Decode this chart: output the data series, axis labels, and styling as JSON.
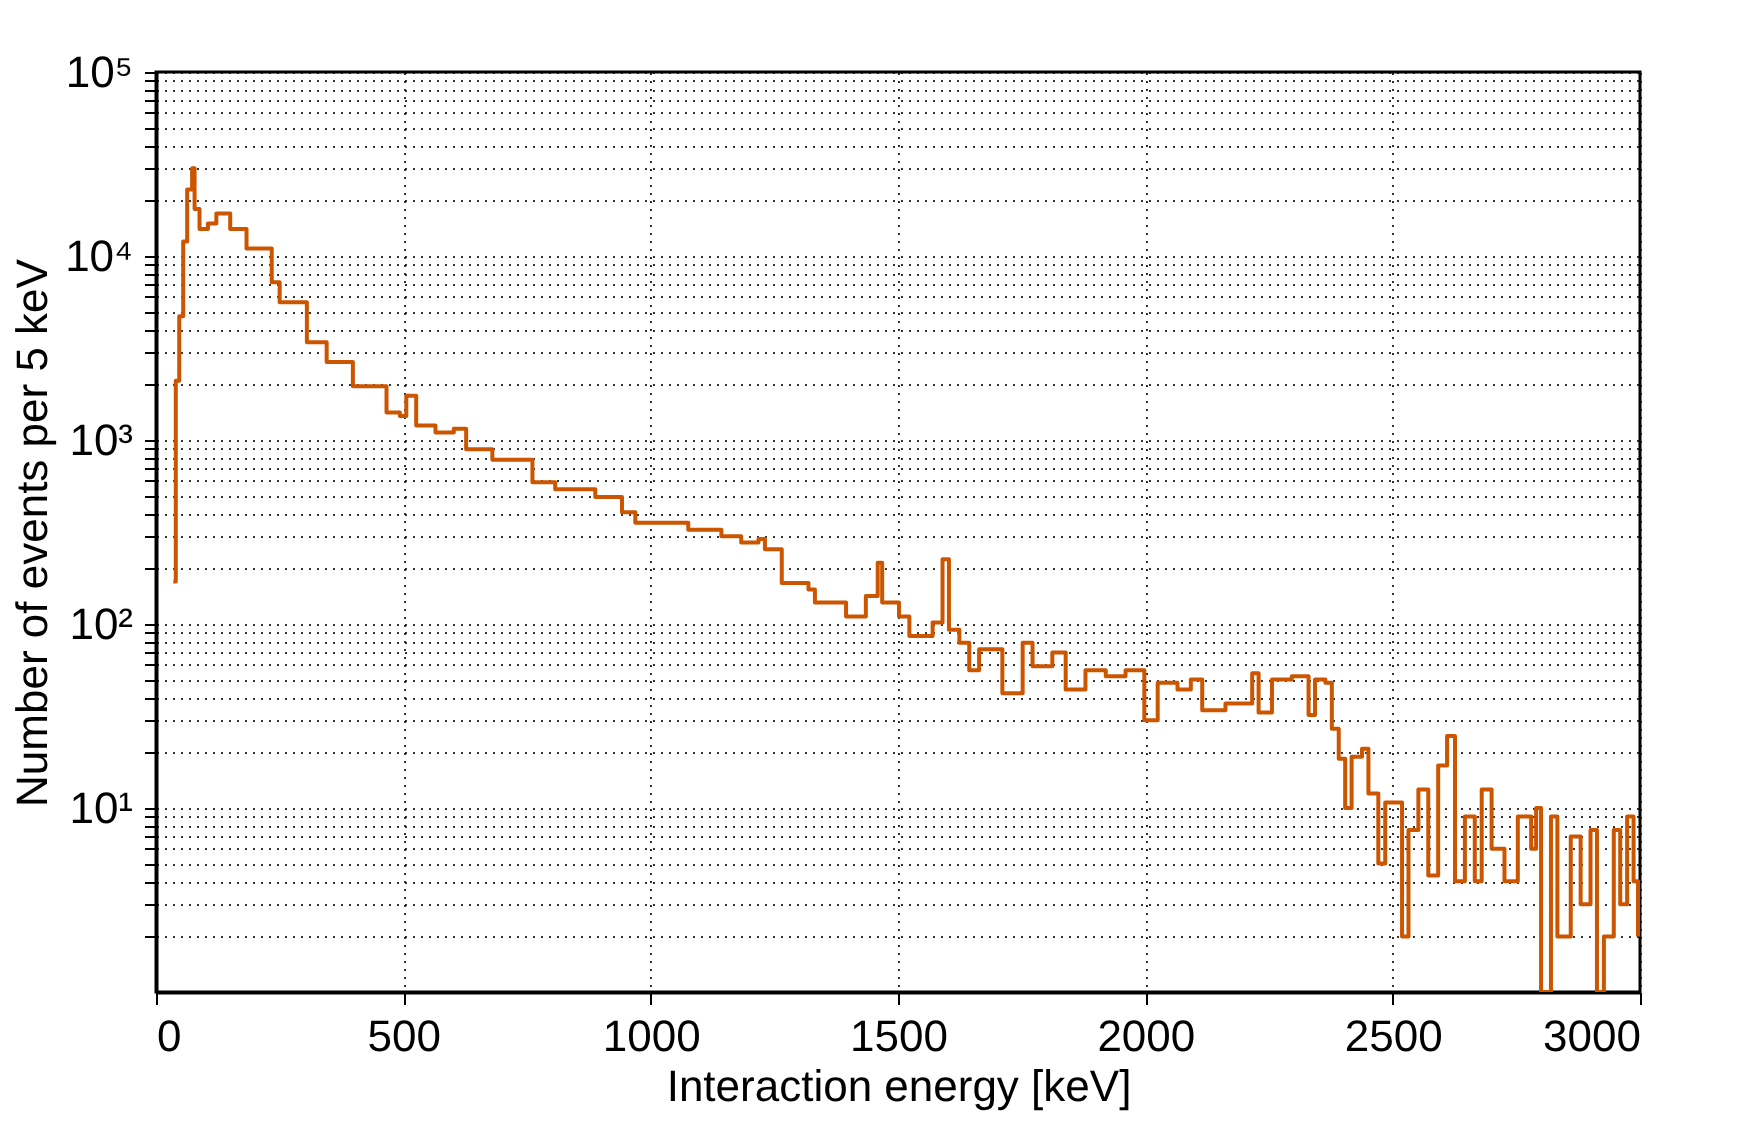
{
  "chart_data": {
    "type": "step",
    "xlabel": "Interaction energy [keV]",
    "ylabel": "Number of events per 5 keV",
    "log": "y",
    "grid": true,
    "line_style": "solid",
    "marker": "none",
    "xlim": [
      0,
      3000
    ],
    "xticks": [
      0,
      500,
      1000,
      1500,
      2000,
      2500,
      3000
    ],
    "ylim": [
      1,
      100000
    ],
    "yticks": [
      {
        "value": 2,
        "label": null
      },
      {
        "value": 3,
        "label": null
      },
      {
        "value": 4,
        "label": null
      },
      {
        "value": 5,
        "label": null
      },
      {
        "value": 6,
        "label": null
      },
      {
        "value": 7,
        "label": null
      },
      {
        "value": 8,
        "label": null
      },
      {
        "value": 9,
        "label": null
      },
      {
        "value": 10,
        "label": "10¹"
      },
      {
        "value": 20,
        "label": null
      },
      {
        "value": 30,
        "label": null
      },
      {
        "value": 40,
        "label": null
      },
      {
        "value": 50,
        "label": null
      },
      {
        "value": 60,
        "label": null
      },
      {
        "value": 70,
        "label": null
      },
      {
        "value": 80,
        "label": null
      },
      {
        "value": 90,
        "label": null
      },
      {
        "value": 100,
        "label": "10²"
      },
      {
        "value": 200,
        "label": null
      },
      {
        "value": 300,
        "label": null
      },
      {
        "value": 400,
        "label": null
      },
      {
        "value": 500,
        "label": null
      },
      {
        "value": 600,
        "label": null
      },
      {
        "value": 700,
        "label": null
      },
      {
        "value": 800,
        "label": null
      },
      {
        "value": 900,
        "label": null
      },
      {
        "value": 1000,
        "label": "10³"
      },
      {
        "value": 2000,
        "label": null
      },
      {
        "value": 3000,
        "label": null
      },
      {
        "value": 4000,
        "label": null
      },
      {
        "value": 5000,
        "label": null
      },
      {
        "value": 6000,
        "label": null
      },
      {
        "value": 7000,
        "label": null
      },
      {
        "value": 8000,
        "label": null
      },
      {
        "value": 9000,
        "label": null
      },
      {
        "value": 10000,
        "label": "10⁴"
      },
      {
        "value": 20000,
        "label": null
      },
      {
        "value": 30000,
        "label": null
      },
      {
        "value": 40000,
        "label": null
      },
      {
        "value": 50000,
        "label": null
      },
      {
        "value": 60000,
        "label": null
      },
      {
        "value": 70000,
        "label": null
      },
      {
        "value": 80000,
        "label": null
      },
      {
        "value": 90000,
        "label": null
      },
      {
        "value": 100000,
        "label": "10⁵"
      }
    ],
    "series": [
      {
        "color": "#cc5500",
        "x": [
          35,
          40,
          47,
          55,
          63,
          73,
          78,
          88,
          105,
          122,
          150,
          183,
          234,
          250,
          305,
          345,
          398,
          466,
          493,
          506,
          526,
          565,
          602,
          627,
          680,
          761,
          807,
          888,
          942,
          969,
          1023,
          1076,
          1143,
          1183,
          1218,
          1231,
          1265,
          1300,
          1319,
          1332,
          1341,
          1395,
          1435,
          1459,
          1468,
          1502,
          1523,
          1570,
          1590,
          1603,
          1624,
          1644,
          1664,
          1711,
          1752,
          1772,
          1812,
          1839,
          1879,
          1920,
          1960,
          1998,
          2025,
          2065,
          2092,
          2115,
          2162,
          2216,
          2229,
          2256,
          2296,
          2330,
          2343,
          2364,
          2377,
          2391,
          2404,
          2417,
          2438,
          2451,
          2471,
          2485,
          2519,
          2532,
          2552,
          2572,
          2592,
          2610,
          2626,
          2646,
          2666,
          2680,
          2700,
          2726,
          2753,
          2780,
          2790,
          2800,
          2820,
          2833,
          2860,
          2880,
          2900,
          2913,
          2927,
          2947,
          2960,
          2974,
          2987,
          2996
        ],
        "values": [
          170,
          2100,
          4700,
          12000,
          23000,
          30000,
          18000,
          14000,
          15000,
          17000,
          14000,
          11000,
          7200,
          5600,
          3400,
          2650,
          1960,
          1410,
          1350,
          1740,
          1200,
          1100,
          1150,
          890,
          780,
          590,
          540,
          490,
          405,
          355,
          355,
          325,
          300,
          277,
          290,
          255,
          167,
          167,
          154,
          131,
          131,
          110,
          142,
          215,
          131,
          110,
          86,
          102,
          225,
          93,
          79,
          56,
          73,
          42,
          79,
          59,
          70,
          44,
          56,
          52,
          56,
          30,
          48,
          44,
          50,
          34,
          37,
          54,
          33,
          50,
          52,
          32,
          50,
          48,
          27,
          18.5,
          10,
          19,
          21,
          12,
          5,
          10.7,
          2,
          7.6,
          12.6,
          4.3,
          17,
          24.6,
          4,
          9,
          4,
          12.6,
          6,
          4,
          9,
          6,
          10,
          1,
          9,
          2,
          7,
          3,
          7.6,
          1,
          2,
          7.6,
          3,
          9,
          4,
          2
        ]
      }
    ]
  }
}
